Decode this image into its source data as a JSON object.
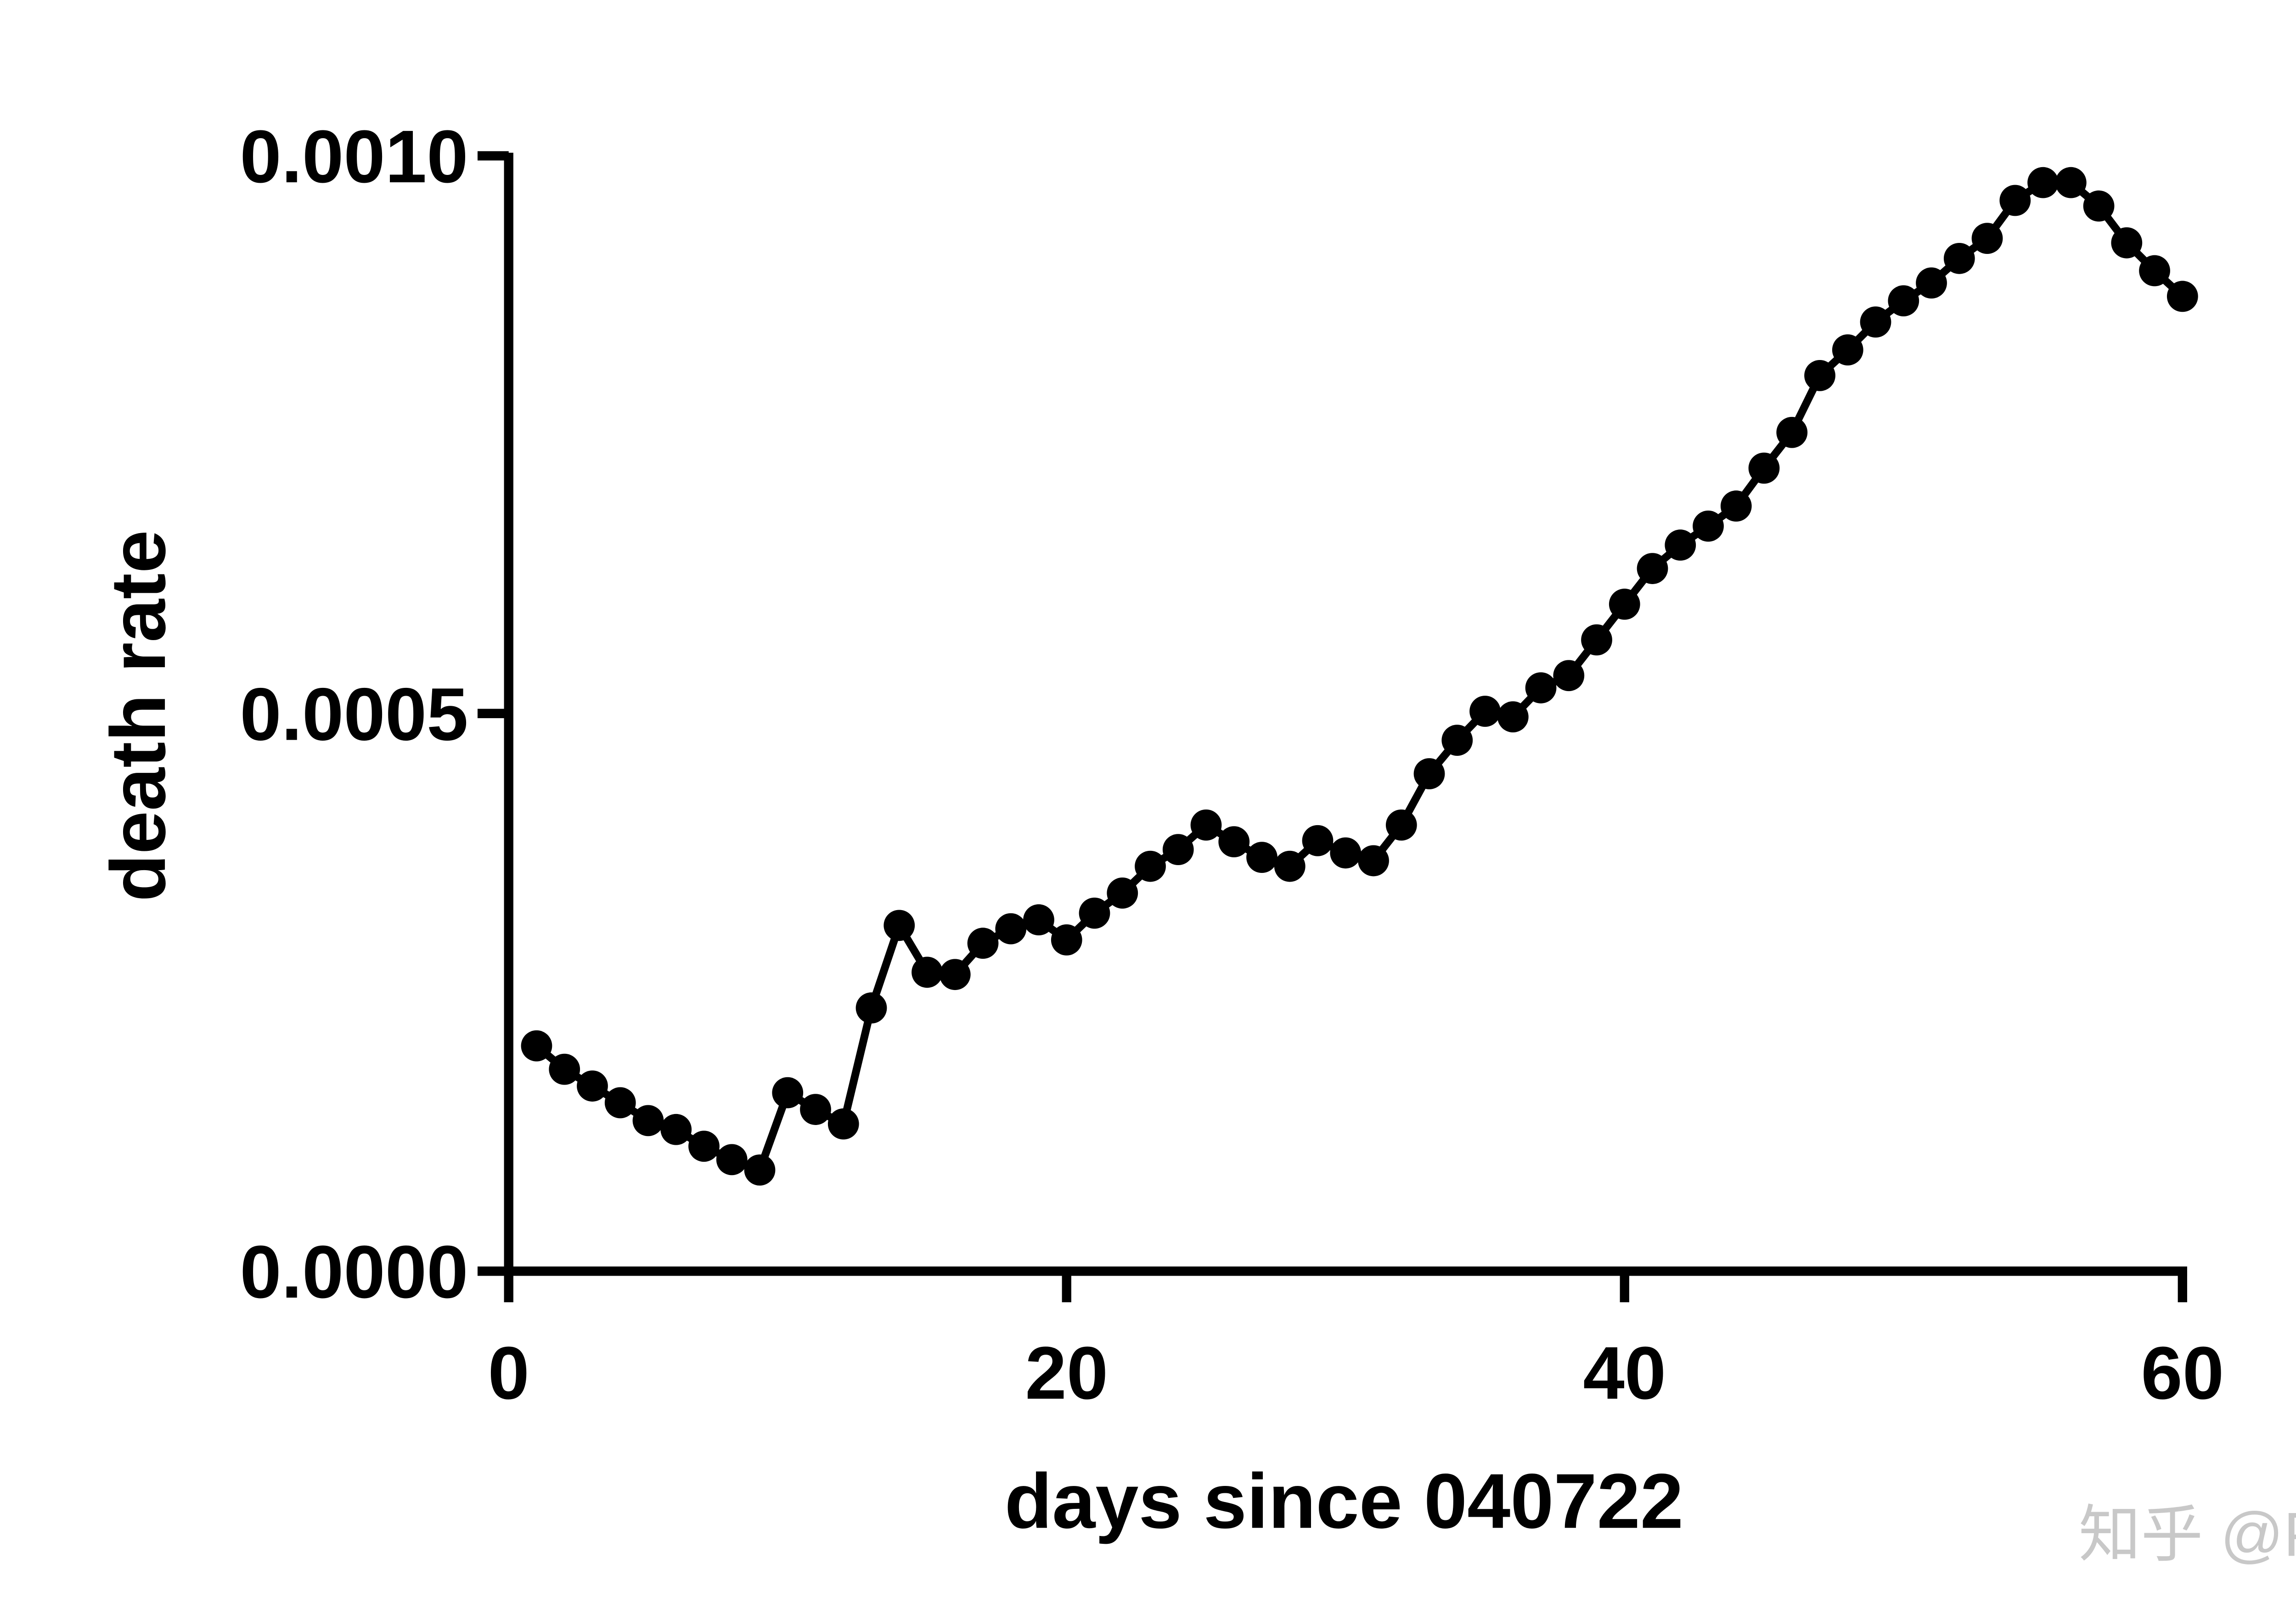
{
  "chart_data": {
    "type": "line",
    "x_label": "days since 040722",
    "y_label": "death rate",
    "watermark": "知乎 @Pat",
    "x": [
      1,
      2,
      3,
      4,
      5,
      6,
      7,
      8,
      9,
      10,
      11,
      12,
      13,
      14,
      15,
      16,
      17,
      18,
      19,
      20,
      21,
      22,
      23,
      24,
      25,
      26,
      27,
      28,
      29,
      30,
      31,
      32,
      33,
      34,
      35,
      36,
      37,
      38,
      39,
      40,
      41,
      42,
      43,
      44,
      45,
      46,
      47,
      48,
      49,
      50,
      51,
      52,
      53,
      54,
      55,
      56,
      57,
      58,
      59,
      60
    ],
    "series": [
      {
        "color": "#000000",
        "values": [
          0.000202,
          0.000181,
          0.000166,
          0.000151,
          0.000135,
          0.000127,
          0.000112,
          0.0001,
          9.07e-05,
          0.00016,
          0.000145,
          0.000132,
          0.000236,
          0.00031,
          0.000268,
          0.000266,
          0.000294,
          0.000307,
          0.000315,
          0.000297,
          0.000321,
          0.000339,
          0.000363,
          0.000378,
          0.0004,
          0.000385,
          0.000371,
          0.000363,
          0.000386,
          0.000375,
          0.000368,
          0.0004,
          0.000446,
          0.000476,
          0.000502,
          0.000497,
          0.000523,
          0.000534,
          0.000566,
          0.000598,
          0.00063,
          0.000651,
          0.000668,
          0.000686,
          0.00072,
          0.000752,
          0.000803,
          0.000826,
          0.000851,
          0.00087,
          0.000886,
          0.000908,
          0.000926,
          0.00096,
          0.000976,
          0.000976,
          0.000955,
          0.000922,
          0.000897,
          0.000874
        ]
      }
    ],
    "xlim": [
      0,
      60
    ],
    "xticks": [
      0,
      20,
      40,
      60
    ],
    "ylim": [
      0,
      0.001
    ],
    "yticks": [
      {
        "value": 0,
        "label": "0.0000"
      },
      {
        "value": 0.0005,
        "label": "0.0005"
      },
      {
        "value": 0.001,
        "label": "0.0010"
      }
    ]
  }
}
